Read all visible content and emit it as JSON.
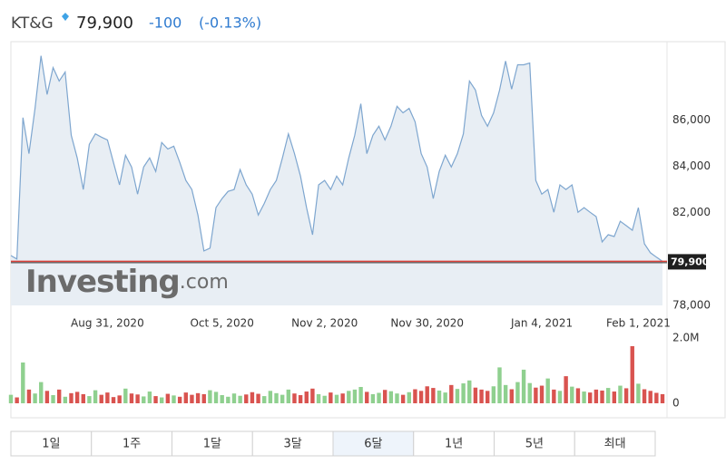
{
  "header": {
    "name": "KT&G",
    "price": "79,900",
    "change": "-100",
    "change_pct": "(-0.13%)"
  },
  "chart_data": {
    "type": "area",
    "watermark": [
      "Investing",
      ".com"
    ],
    "categories": [
      null,
      null,
      null,
      null,
      null,
      null,
      null,
      null,
      null,
      null,
      null,
      null,
      null,
      null,
      null,
      null,
      "Aug 31, 2020",
      null,
      null,
      null,
      null,
      null,
      null,
      null,
      null,
      null,
      null,
      null,
      null,
      null,
      null,
      null,
      null,
      null,
      null,
      "Oct 5, 2020",
      null,
      null,
      null,
      null,
      null,
      null,
      null,
      null,
      null,
      null,
      null,
      null,
      null,
      null,
      null,
      null,
      "Nov 2, 2020",
      null,
      null,
      null,
      null,
      null,
      null,
      null,
      null,
      null,
      null,
      null,
      null,
      null,
      null,
      null,
      null,
      "Nov 30, 2020",
      null,
      null,
      null,
      null,
      null,
      null,
      null,
      null,
      null,
      null,
      null,
      null,
      null,
      null,
      null,
      null,
      null,
      null,
      "Jan 4, 2021",
      null,
      null,
      null,
      null,
      null,
      null,
      null,
      null,
      null,
      null,
      null,
      null,
      null,
      null,
      null,
      "Feb 1, 2021",
      null,
      null,
      null,
      null
    ],
    "values": [
      80150,
      80000,
      86100,
      84550,
      86500,
      88770,
      87100,
      88260,
      87680,
      88070,
      85340,
      84360,
      83000,
      84950,
      85400,
      85260,
      85140,
      84170,
      83200,
      84480,
      83970,
      82800,
      83970,
      84360,
      83780,
      85030,
      84750,
      84870,
      84170,
      83390,
      83000,
      81900,
      80350,
      80470,
      82220,
      82610,
      82920,
      83000,
      83860,
      83200,
      82800,
      81900,
      82400,
      83000,
      83390,
      84360,
      85400,
      84550,
      83580,
      82220,
      81050,
      83200,
      83390,
      83000,
      83580,
      83200,
      84360,
      85340,
      86700,
      84550,
      85340,
      85730,
      85140,
      85730,
      86590,
      86310,
      86500,
      85920,
      84550,
      83970,
      82610,
      83780,
      84480,
      83970,
      84550,
      85400,
      87680,
      87290,
      86200,
      85730,
      86310,
      87290,
      88540,
      87330,
      88380,
      88380,
      88460,
      83390,
      82800,
      83000,
      82020,
      83200,
      83000,
      83200,
      82020,
      82220,
      82020,
      81830,
      80740,
      81050,
      80970,
      81630,
      81440,
      81240,
      82220,
      80660,
      80270,
      80080,
      79900
    ],
    "color": "#7ea6cf",
    "fill": "#e8eef4",
    "ylim": [
      78000,
      89300
    ],
    "yticks": [
      {
        "value": 78000,
        "label": "78,000"
      },
      {
        "value": 82000,
        "label": "82,000"
      },
      {
        "value": 84000,
        "label": "84,000"
      },
      {
        "value": 86000,
        "label": "86,000"
      }
    ],
    "last_price": {
      "value": 79900,
      "label": "79,900",
      "color": "#d9413a"
    },
    "volume": {
      "ylim": [
        0,
        2000000
      ],
      "yticks": [
        0,
        {
          "value": 2000000,
          "label": "2.0M"
        }
      ],
      "up_color": "#8fd08f",
      "down_color": "#d9534f",
      "values": [
        260000,
        180000,
        1250000,
        420000,
        300000,
        650000,
        380000,
        250000,
        420000,
        200000,
        310000,
        350000,
        280000,
        220000,
        400000,
        260000,
        330000,
        190000,
        240000,
        450000,
        300000,
        270000,
        210000,
        360000,
        220000,
        180000,
        290000,
        240000,
        200000,
        330000,
        260000,
        310000,
        280000,
        400000,
        350000,
        250000,
        200000,
        300000,
        230000,
        270000,
        340000,
        290000,
        220000,
        380000,
        310000,
        260000,
        420000,
        300000,
        250000,
        360000,
        450000,
        280000,
        230000,
        330000,
        260000,
        300000,
        380000,
        420000,
        500000,
        350000,
        280000,
        320000,
        410000,
        370000,
        300000,
        260000,
        340000,
        430000,
        380000,
        520000,
        470000,
        390000,
        330000,
        560000,
        440000,
        610000,
        700000,
        480000,
        420000,
        380000,
        520000,
        1100000,
        560000,
        430000,
        650000,
        1030000,
        620000,
        480000,
        540000,
        760000,
        420000,
        380000,
        830000,
        510000,
        460000,
        360000,
        330000,
        420000,
        390000,
        470000,
        360000,
        540000,
        460000,
        1750000,
        600000,
        430000,
        380000,
        320000,
        280000
      ]
    }
  },
  "tabs": {
    "labels": [
      "1일",
      "1주",
      "1달",
      "3달",
      "6달",
      "1년",
      "5년",
      "최대"
    ],
    "selected": 4
  }
}
